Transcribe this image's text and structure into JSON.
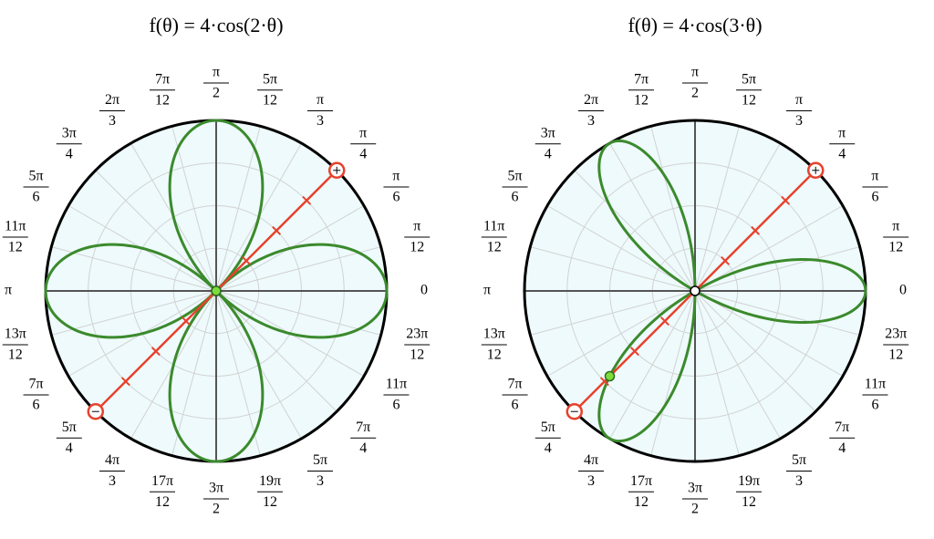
{
  "chart_data": [
    {
      "type": "polar",
      "title": "f(θ) = 4·cos(2·θ)",
      "amplitude": 4,
      "frequency": 2,
      "theta": 0.7854,
      "rlim": [
        0,
        4
      ],
      "rticks": [
        1,
        2,
        3
      ],
      "curve_color": "#3b8a2c",
      "ray_color": "#e8412c",
      "angle_ticks": [
        {
          "value": 0,
          "label": "0"
        },
        {
          "value": 0.2618,
          "numerator": "π",
          "denominator": "12"
        },
        {
          "value": 0.5236,
          "numerator": "π",
          "denominator": "6"
        },
        {
          "value": 0.7854,
          "numerator": "π",
          "denominator": "4"
        },
        {
          "value": 1.0472,
          "numerator": "π",
          "denominator": "3"
        },
        {
          "value": 1.309,
          "numerator": "5π",
          "denominator": "12"
        },
        {
          "value": 1.5708,
          "numerator": "π",
          "denominator": "2"
        },
        {
          "value": 1.8326,
          "numerator": "7π",
          "denominator": "12"
        },
        {
          "value": 2.0944,
          "numerator": "2π",
          "denominator": "3"
        },
        {
          "value": 2.3562,
          "numerator": "3π",
          "denominator": "4"
        },
        {
          "value": 2.618,
          "numerator": "5π",
          "denominator": "6"
        },
        {
          "value": 2.8798,
          "numerator": "11π",
          "denominator": "12"
        },
        {
          "value": 3.1416,
          "label": "π"
        },
        {
          "value": 3.4034,
          "numerator": "13π",
          "denominator": "12"
        },
        {
          "value": 3.6652,
          "numerator": "7π",
          "denominator": "6"
        },
        {
          "value": 3.927,
          "numerator": "5π",
          "denominator": "4"
        },
        {
          "value": 4.1888,
          "numerator": "4π",
          "denominator": "3"
        },
        {
          "value": 4.4506,
          "numerator": "17π",
          "denominator": "12"
        },
        {
          "value": 4.7124,
          "numerator": "3π",
          "denominator": "2"
        },
        {
          "value": 4.9742,
          "numerator": "19π",
          "denominator": "12"
        },
        {
          "value": 5.236,
          "numerator": "5π",
          "denominator": "3"
        },
        {
          "value": 5.4978,
          "numerator": "7π",
          "denominator": "4"
        },
        {
          "value": 5.7596,
          "numerator": "11π",
          "denominator": "6"
        },
        {
          "value": 6.0214,
          "numerator": "23π",
          "denominator": "12"
        }
      ]
    },
    {
      "type": "polar",
      "title": "f(θ) = 4·cos(3·θ)",
      "amplitude": 4,
      "frequency": 3,
      "theta": 0.7854,
      "rlim": [
        0,
        4
      ],
      "rticks": [
        1,
        2,
        3
      ],
      "curve_color": "#3b8a2c",
      "ray_color": "#e8412c",
      "angle_ticks": [
        {
          "value": 0,
          "label": "0"
        },
        {
          "value": 0.2618,
          "numerator": "π",
          "denominator": "12"
        },
        {
          "value": 0.5236,
          "numerator": "π",
          "denominator": "6"
        },
        {
          "value": 0.7854,
          "numerator": "π",
          "denominator": "4"
        },
        {
          "value": 1.0472,
          "numerator": "π",
          "denominator": "3"
        },
        {
          "value": 1.309,
          "numerator": "5π",
          "denominator": "12"
        },
        {
          "value": 1.5708,
          "numerator": "π",
          "denominator": "2"
        },
        {
          "value": 1.8326,
          "numerator": "7π",
          "denominator": "12"
        },
        {
          "value": 2.0944,
          "numerator": "2π",
          "denominator": "3"
        },
        {
          "value": 2.3562,
          "numerator": "3π",
          "denominator": "4"
        },
        {
          "value": 2.618,
          "numerator": "5π",
          "denominator": "6"
        },
        {
          "value": 2.8798,
          "numerator": "11π",
          "denominator": "12"
        },
        {
          "value": 3.1416,
          "label": "π"
        },
        {
          "value": 3.4034,
          "numerator": "13π",
          "denominator": "12"
        },
        {
          "value": 3.6652,
          "numerator": "7π",
          "denominator": "6"
        },
        {
          "value": 3.927,
          "numerator": "5π",
          "denominator": "4"
        },
        {
          "value": 4.1888,
          "numerator": "4π",
          "denominator": "3"
        },
        {
          "value": 4.4506,
          "numerator": "17π",
          "denominator": "12"
        },
        {
          "value": 4.7124,
          "numerator": "3π",
          "denominator": "2"
        },
        {
          "value": 4.9742,
          "numerator": "19π",
          "denominator": "12"
        },
        {
          "value": 5.236,
          "numerator": "5π",
          "denominator": "3"
        },
        {
          "value": 5.4978,
          "numerator": "7π",
          "denominator": "4"
        },
        {
          "value": 5.7596,
          "numerator": "11π",
          "denominator": "6"
        },
        {
          "value": 6.0214,
          "numerator": "23π",
          "denominator": "12"
        }
      ]
    }
  ]
}
